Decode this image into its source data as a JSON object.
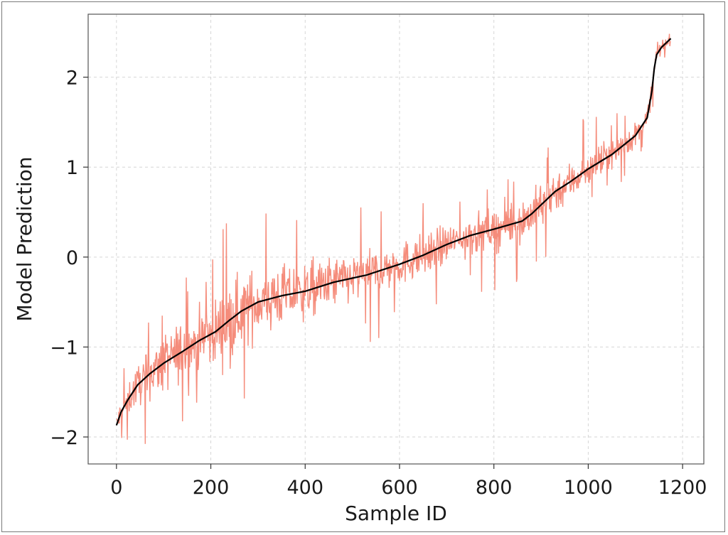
{
  "chart_data": {
    "type": "line",
    "title": "",
    "xlabel": "Sample ID",
    "ylabel": "Model Prediction",
    "xlim": [
      -60,
      1245
    ],
    "ylim": [
      -2.3,
      2.7
    ],
    "xticks": [
      0,
      200,
      400,
      600,
      800,
      1000,
      1200
    ],
    "yticks": [
      -2,
      -1,
      0,
      1,
      2
    ],
    "xtick_labels": [
      "0",
      "200",
      "400",
      "600",
      "800",
      "1000",
      "1200"
    ],
    "ytick_labels": [
      "−2",
      "−1",
      "0",
      "1",
      "2"
    ],
    "grid": true,
    "series": [
      {
        "role": "noisy-prediction",
        "color": "#f4806d",
        "n_points": 1175,
        "noise_amplitude_by_x": [
          [
            0,
            0.2
          ],
          [
            100,
            0.45
          ],
          [
            260,
            0.55
          ],
          [
            450,
            0.4
          ],
          [
            700,
            0.3
          ],
          [
            900,
            0.35
          ],
          [
            1100,
            0.2
          ],
          [
            1175,
            0.08
          ]
        ]
      },
      {
        "role": "sorted-prediction",
        "color": "#000000",
        "x": [
          0,
          10,
          25,
          45,
          70,
          100,
          140,
          175,
          210,
          240,
          265,
          300,
          350,
          400,
          460,
          530,
          600,
          650,
          700,
          750,
          800,
          860,
          880,
          900,
          930,
          960,
          1000,
          1050,
          1100,
          1125,
          1135,
          1140,
          1145,
          1155,
          1175
        ],
        "y": [
          -1.87,
          -1.72,
          -1.58,
          -1.42,
          -1.3,
          -1.18,
          -1.05,
          -0.93,
          -0.83,
          -0.7,
          -0.6,
          -0.5,
          -0.43,
          -0.38,
          -0.28,
          -0.2,
          -0.08,
          0.02,
          0.14,
          0.24,
          0.31,
          0.4,
          0.48,
          0.58,
          0.73,
          0.83,
          0.98,
          1.14,
          1.35,
          1.55,
          1.85,
          2.1,
          2.25,
          2.33,
          2.43
        ]
      }
    ]
  }
}
